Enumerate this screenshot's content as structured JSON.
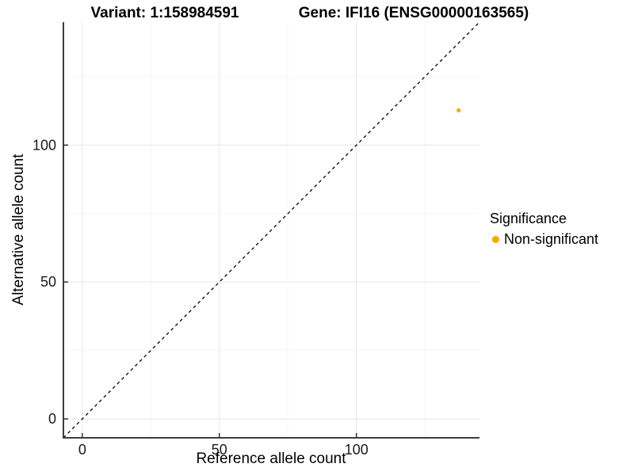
{
  "page": {
    "background": "#FFFFFF"
  },
  "chart_data": {
    "type": "scatter",
    "titles": {
      "left": "Variant: 1:158984591",
      "right": "Gene: IFI16 (ENSG00000163565)"
    },
    "xlabel": "Reference allele count",
    "ylabel": "Alternative allele count",
    "xlim": [
      -6.9,
      144.9
    ],
    "ylim": [
      -6.9,
      144.9
    ],
    "x_ticks": [
      0,
      50,
      100
    ],
    "y_ticks": [
      0,
      50,
      100
    ],
    "x_minor_ticks": [
      25,
      75,
      125
    ],
    "y_minor_ticks": [
      25,
      75,
      125
    ],
    "grid": true,
    "reference_line": {
      "kind": "identity",
      "dashed": true,
      "color": "#000000"
    },
    "series": [
      {
        "name": "Non-significant",
        "color": "#FFA500",
        "points": [
          {
            "x": 137.3,
            "y": 112.7
          }
        ]
      }
    ],
    "legend": {
      "title": "Significance",
      "position": "right",
      "items": [
        {
          "label": "Non-significant",
          "color": "#FFA500"
        }
      ]
    },
    "colors": {
      "grid_major": "#EBEBEB",
      "grid_minor": "#F5F5F5",
      "axis_line": "#3C3C3C",
      "tick_mark": "#333333",
      "tick_label": "#1A1A1A"
    }
  }
}
